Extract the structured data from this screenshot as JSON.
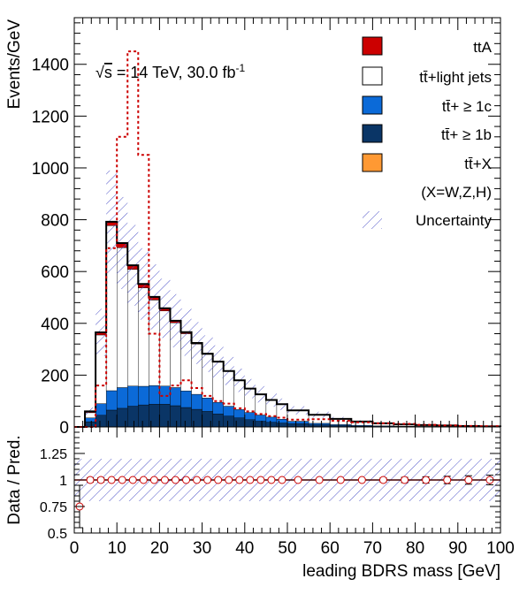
{
  "chart_data": {
    "type": "bar",
    "ylabel": "Events/GeV",
    "xlabel": "leading BDRS mass [GeV]",
    "ratio_ylabel": "Data / Pred.",
    "annotation": {
      "sqrt_s": "s",
      "text": " = 14 TeV, 30.0 fb",
      "sup": "-1"
    },
    "xlim": [
      0,
      100
    ],
    "ylim": [
      0,
      1580
    ],
    "ratio_ylim": [
      0.5,
      1.5
    ],
    "x_ticks": [
      0,
      10,
      20,
      30,
      40,
      50,
      60,
      70,
      80,
      90,
      100
    ],
    "y_ticks": [
      0,
      200,
      400,
      600,
      800,
      1000,
      1200,
      1400
    ],
    "ratio_ticks": [
      0.5,
      0.75,
      1,
      1.25
    ],
    "bin_edges": [
      0,
      2.5,
      5,
      7.5,
      10,
      12.5,
      15,
      17.5,
      20,
      22.5,
      25,
      27.5,
      30,
      32.5,
      35,
      37.5,
      40,
      42.5,
      45,
      47.5,
      50,
      55,
      60,
      65,
      70,
      75,
      80,
      85,
      90,
      95,
      100
    ],
    "legend": {
      "ttA": "ttA",
      "light": "tt̄+light jets",
      "c": "tt̄+ ≥ 1c",
      "b": "tt̄+ ≥ 1b",
      "x": "tt̄+X",
      "x_note": "(X=W,Z,H)",
      "unc": "Uncertainty"
    },
    "colors": {
      "ttA": "#cc0000",
      "light": "#ffffff",
      "c": "#0b6ad8",
      "b": "#0a3566",
      "x": "#ff9933",
      "signal": "#cc0000",
      "hatch": "#5055c8"
    },
    "series": [
      {
        "key": "b",
        "values": [
          0,
          20,
          45,
          65,
          72,
          80,
          85,
          88,
          88,
          82,
          75,
          68,
          60,
          50,
          42,
          35,
          28,
          22,
          18,
          15,
          12,
          8,
          5,
          3,
          2,
          1.5,
          1,
          0.8,
          0.5,
          0.3
        ]
      },
      {
        "key": "c",
        "values": [
          0,
          15,
          45,
          75,
          80,
          78,
          72,
          72,
          70,
          70,
          64,
          58,
          52,
          45,
          38,
          32,
          28,
          24,
          20,
          15,
          10,
          6,
          4,
          3,
          2,
          1.5,
          1.2,
          1,
          0.7,
          0.4
        ]
      },
      {
        "key": "light",
        "values": [
          0,
          20,
          265,
          637,
          540,
          450,
          380,
          330,
          290,
          250,
          221,
          194,
          168,
          155,
          135,
          112,
          92,
          80,
          66,
          58,
          42,
          33,
          22,
          15,
          10,
          7,
          5,
          3,
          2,
          1.5
        ]
      },
      {
        "key": "ttA",
        "values": [
          0,
          5,
          10,
          15,
          18,
          16,
          15,
          12,
          10,
          8,
          6,
          4,
          3,
          2,
          1,
          0.5,
          0.5,
          0.3,
          0.2,
          0.2,
          0.1,
          0.1,
          0,
          0,
          0,
          0,
          0,
          0,
          0,
          0
        ]
      }
    ],
    "total": [
      0,
      60,
      365,
      792,
      710,
      624,
      552,
      502,
      458,
      410,
      366,
      324,
      283,
      252,
      216,
      180,
      148,
      126,
      104,
      88,
      64,
      47,
      31,
      21,
      14,
      10,
      7.2,
      5.6,
      3.2,
      2.2
    ],
    "signal": [
      0,
      0,
      160,
      690,
      1120,
      1450,
      1050,
      360,
      120,
      160,
      180,
      150,
      120,
      100,
      90,
      72,
      60,
      50,
      42,
      36,
      28,
      30,
      24,
      18,
      14,
      12,
      8,
      6,
      4,
      3
    ],
    "ratio": {
      "x": [
        1.25,
        3.75,
        6.25,
        8.75,
        11.25,
        13.75,
        16.25,
        18.75,
        21.25,
        23.75,
        26.25,
        28.75,
        31.25,
        33.75,
        36.25,
        38.75,
        41.25,
        43.75,
        46.25,
        48.75,
        52.5,
        57.5,
        62.5,
        67.5,
        72.5,
        77.5,
        82.5,
        87.5,
        92.5,
        97.5
      ],
      "y": [
        0.75,
        1,
        1,
        1,
        1,
        1,
        1,
        1,
        1,
        1,
        1,
        1,
        1,
        1,
        1,
        1,
        1,
        1,
        1,
        1,
        1,
        1,
        1,
        1,
        1,
        1,
        1,
        1,
        1,
        1
      ],
      "err": [
        0.2,
        0.02,
        0.02,
        0.01,
        0.01,
        0.01,
        0.01,
        0.01,
        0.01,
        0.01,
        0.01,
        0.01,
        0.01,
        0.01,
        0.01,
        0.01,
        0.01,
        0.01,
        0.01,
        0.01,
        0.01,
        0.01,
        0.01,
        0.01,
        0.02,
        0.025,
        0.03,
        0.035,
        0.04,
        0.045
      ],
      "band": 0.2
    }
  }
}
